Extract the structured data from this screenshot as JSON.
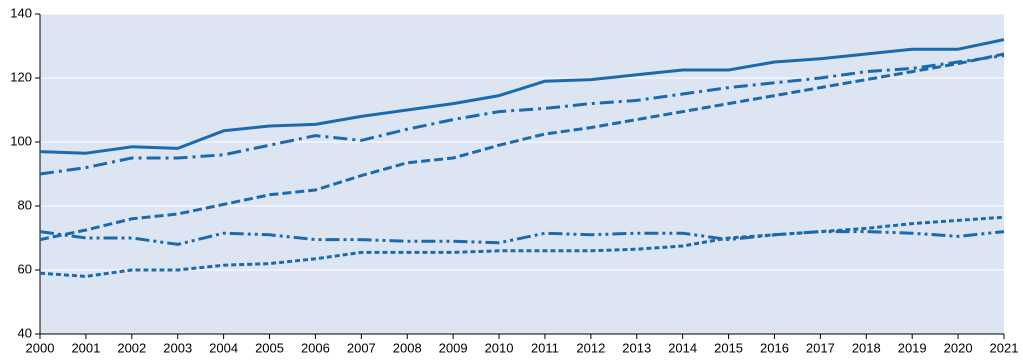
{
  "chart_data": {
    "type": "line",
    "x": [
      2000,
      2001,
      2002,
      2003,
      2004,
      2005,
      2006,
      2007,
      2008,
      2009,
      2010,
      2011,
      2012,
      2013,
      2014,
      2015,
      2016,
      2017,
      2018,
      2019,
      2020,
      2021
    ],
    "xlim": [
      2000,
      2021
    ],
    "xticks": [
      2000,
      2001,
      2002,
      2003,
      2004,
      2005,
      2006,
      2007,
      2008,
      2009,
      2010,
      2011,
      2012,
      2013,
      2014,
      2015,
      2016,
      2017,
      2018,
      2019,
      2020,
      2021
    ],
    "ylim": [
      40,
      140
    ],
    "yticks": [
      40,
      60,
      80,
      100,
      120,
      140
    ],
    "grid": true,
    "background": "#dde5f2",
    "series": [
      {
        "color": "#1b6ab0",
        "dash": "none",
        "values": [
          97,
          96.5,
          98.5,
          98,
          103.5,
          105,
          105.5,
          108,
          110,
          112,
          114.5,
          119,
          119.5,
          121,
          122.5,
          122.5,
          125,
          126,
          127.5,
          129,
          129,
          132
        ]
      },
      {
        "color": "#1b6ab0",
        "dash": "14 5 3 5",
        "values": [
          90,
          92,
          95,
          95,
          96,
          99,
          102,
          100.5,
          104,
          107,
          109.5,
          110.5,
          112,
          113,
          115,
          117,
          118.5,
          120,
          122,
          123,
          125,
          127
        ]
      },
      {
        "color": "#1b6ab0",
        "dash": "9 4",
        "values": [
          69.5,
          72.5,
          76,
          77.5,
          80.5,
          83.5,
          85,
          89.5,
          93.5,
          95,
          99,
          102.5,
          104.5,
          107,
          109.5,
          112,
          114.5,
          117,
          119.5,
          122,
          124.5,
          127.5
        ]
      },
      {
        "color": "#1b6ab0",
        "dash": "14 4 3 4 3 4",
        "values": [
          72,
          70,
          70,
          68,
          71.5,
          71,
          69.5,
          69.5,
          69,
          69,
          68.5,
          71.5,
          71,
          71.5,
          71.5,
          69.5,
          71,
          72,
          72,
          71.5,
          70.5,
          72
        ]
      },
      {
        "color": "#1b6ab0",
        "dash": "5 3",
        "values": [
          59,
          58,
          60,
          60,
          61.5,
          62,
          63.5,
          65.5,
          65.5,
          65.5,
          66,
          66,
          66,
          66.5,
          67.5,
          70,
          71,
          72,
          73,
          74.5,
          75.5,
          76.5
        ]
      }
    ]
  }
}
